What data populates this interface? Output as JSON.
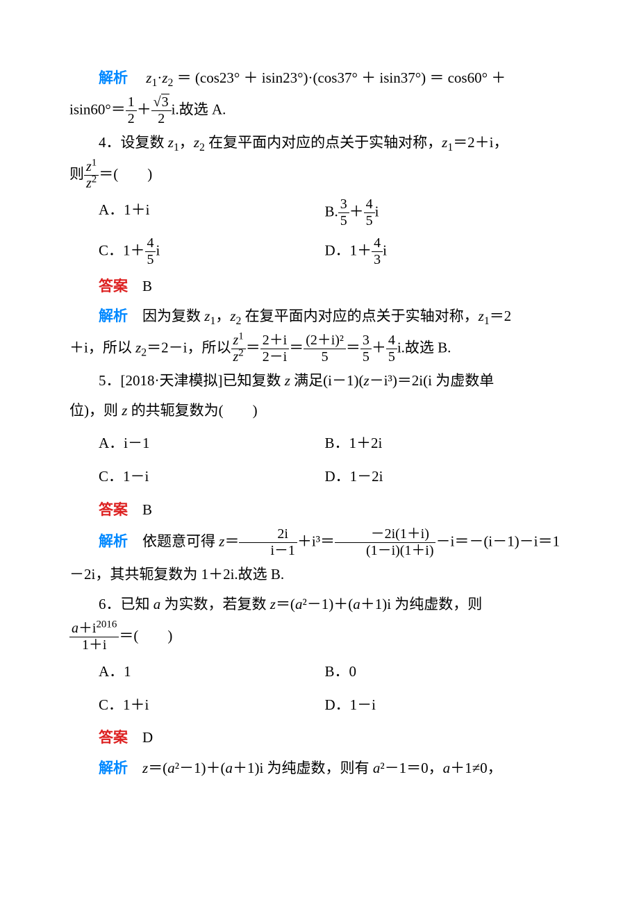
{
  "page": {
    "background_color": "#ffffff",
    "text_color": "#000000",
    "answer_label_color": "#d22",
    "analysis_label_color": "#08f",
    "base_fontsize": 21,
    "font_family": "SimSun, serif"
  },
  "labels": {
    "analysis": "解析",
    "answer": "答案"
  },
  "q3": {
    "analysis_prefix": "z₁·z₂ ＝ (cos23° ＋ isin23°)·(cos37° ＋ isin37°) ＝ cos60° ＋",
    "analysis_line2_prefix": "isin60°＝",
    "frac_half_num": "1",
    "frac_half_den": "2",
    "frac_r3_num": "3",
    "frac_r3_den": "2",
    "analysis_tail": "i.故选 A."
  },
  "q4": {
    "stem_l1": "4．设复数 z₁，z₂ 在复平面内对应的点关于实轴对称，z₁＝2＋i，",
    "stem_l2_prefix": "则",
    "stem_frac_num": "z¹",
    "stem_frac_den": "z²",
    "stem_l2_suffix": "＝(　　)",
    "optA": "A．1＋i",
    "optB_prefix": "B.",
    "optB_f1_num": "3",
    "optB_f1_den": "5",
    "optB_mid": "＋",
    "optB_f2_num": "4",
    "optB_f2_den": "5",
    "optB_suffix": "i",
    "optC_prefix": "C．1＋",
    "optC_f_num": "4",
    "optC_f_den": "5",
    "optC_suffix": "i",
    "optD_prefix": "D．1＋",
    "optD_f_num": "4",
    "optD_f_den": "3",
    "optD_suffix": "i",
    "answer": "B",
    "ana_l1": "因为复数 z₁，z₂ 在复平面内对应的点关于实轴对称，z₁＝2",
    "ana_l2_prefix": "＋i，所以 z₂＝2－i，所以",
    "ana_f1_num": "z¹",
    "ana_f1_den": "z²",
    "ana_eq1": "＝",
    "ana_f2_num": "2＋i",
    "ana_f2_den": "2－i",
    "ana_eq2": "＝",
    "ana_f3_num": "(2＋i)²",
    "ana_f3_den": "5",
    "ana_eq3": "＝",
    "ana_f4_num": "3",
    "ana_f4_den": "5",
    "ana_plus": "＋",
    "ana_f5_num": "4",
    "ana_f5_den": "5",
    "ana_l2_suffix": "i.故选 B."
  },
  "q5": {
    "stem_l1": "5．[2018·天津模拟]已知复数 z 满足(i－1)(z－i³)＝2i(i 为虚数单",
    "stem_l2": "位)，则 z 的共轭复数为(　　)",
    "optA": "A．i－1",
    "optB": "B．1＋2i",
    "optC": "C．1－i",
    "optD": "D．1－2i",
    "answer": "B",
    "ana_prefix": "依题意可得 z＝",
    "ana_f1_num": "2i",
    "ana_f1_den": "i－1",
    "ana_mid1": "＋i³＝",
    "ana_f2_num": "－2i(1＋i)",
    "ana_f2_den": "(1－i)(1＋i)",
    "ana_mid2": "－i＝－(i－1)－i＝1",
    "ana_l2": "－2i，其共轭复数为 1＋2i.故选 B."
  },
  "q6": {
    "stem_l1": "6．已知 a 为实数，若复数 z＝(a²－1)＋(a＋1)i 为纯虚数，则",
    "stem_f_num": "a＋i²⁰¹⁶",
    "stem_f_den": "1＋i",
    "stem_l2_suffix": "＝(　　)",
    "optA": "A．1",
    "optB": "B．0",
    "optC": "C．1＋i",
    "optD": "D．1－i",
    "answer": "D",
    "ana": "z＝(a²－1)＋(a＋1)i 为纯虚数，则有 a²－1＝0，a＋1≠0，"
  }
}
